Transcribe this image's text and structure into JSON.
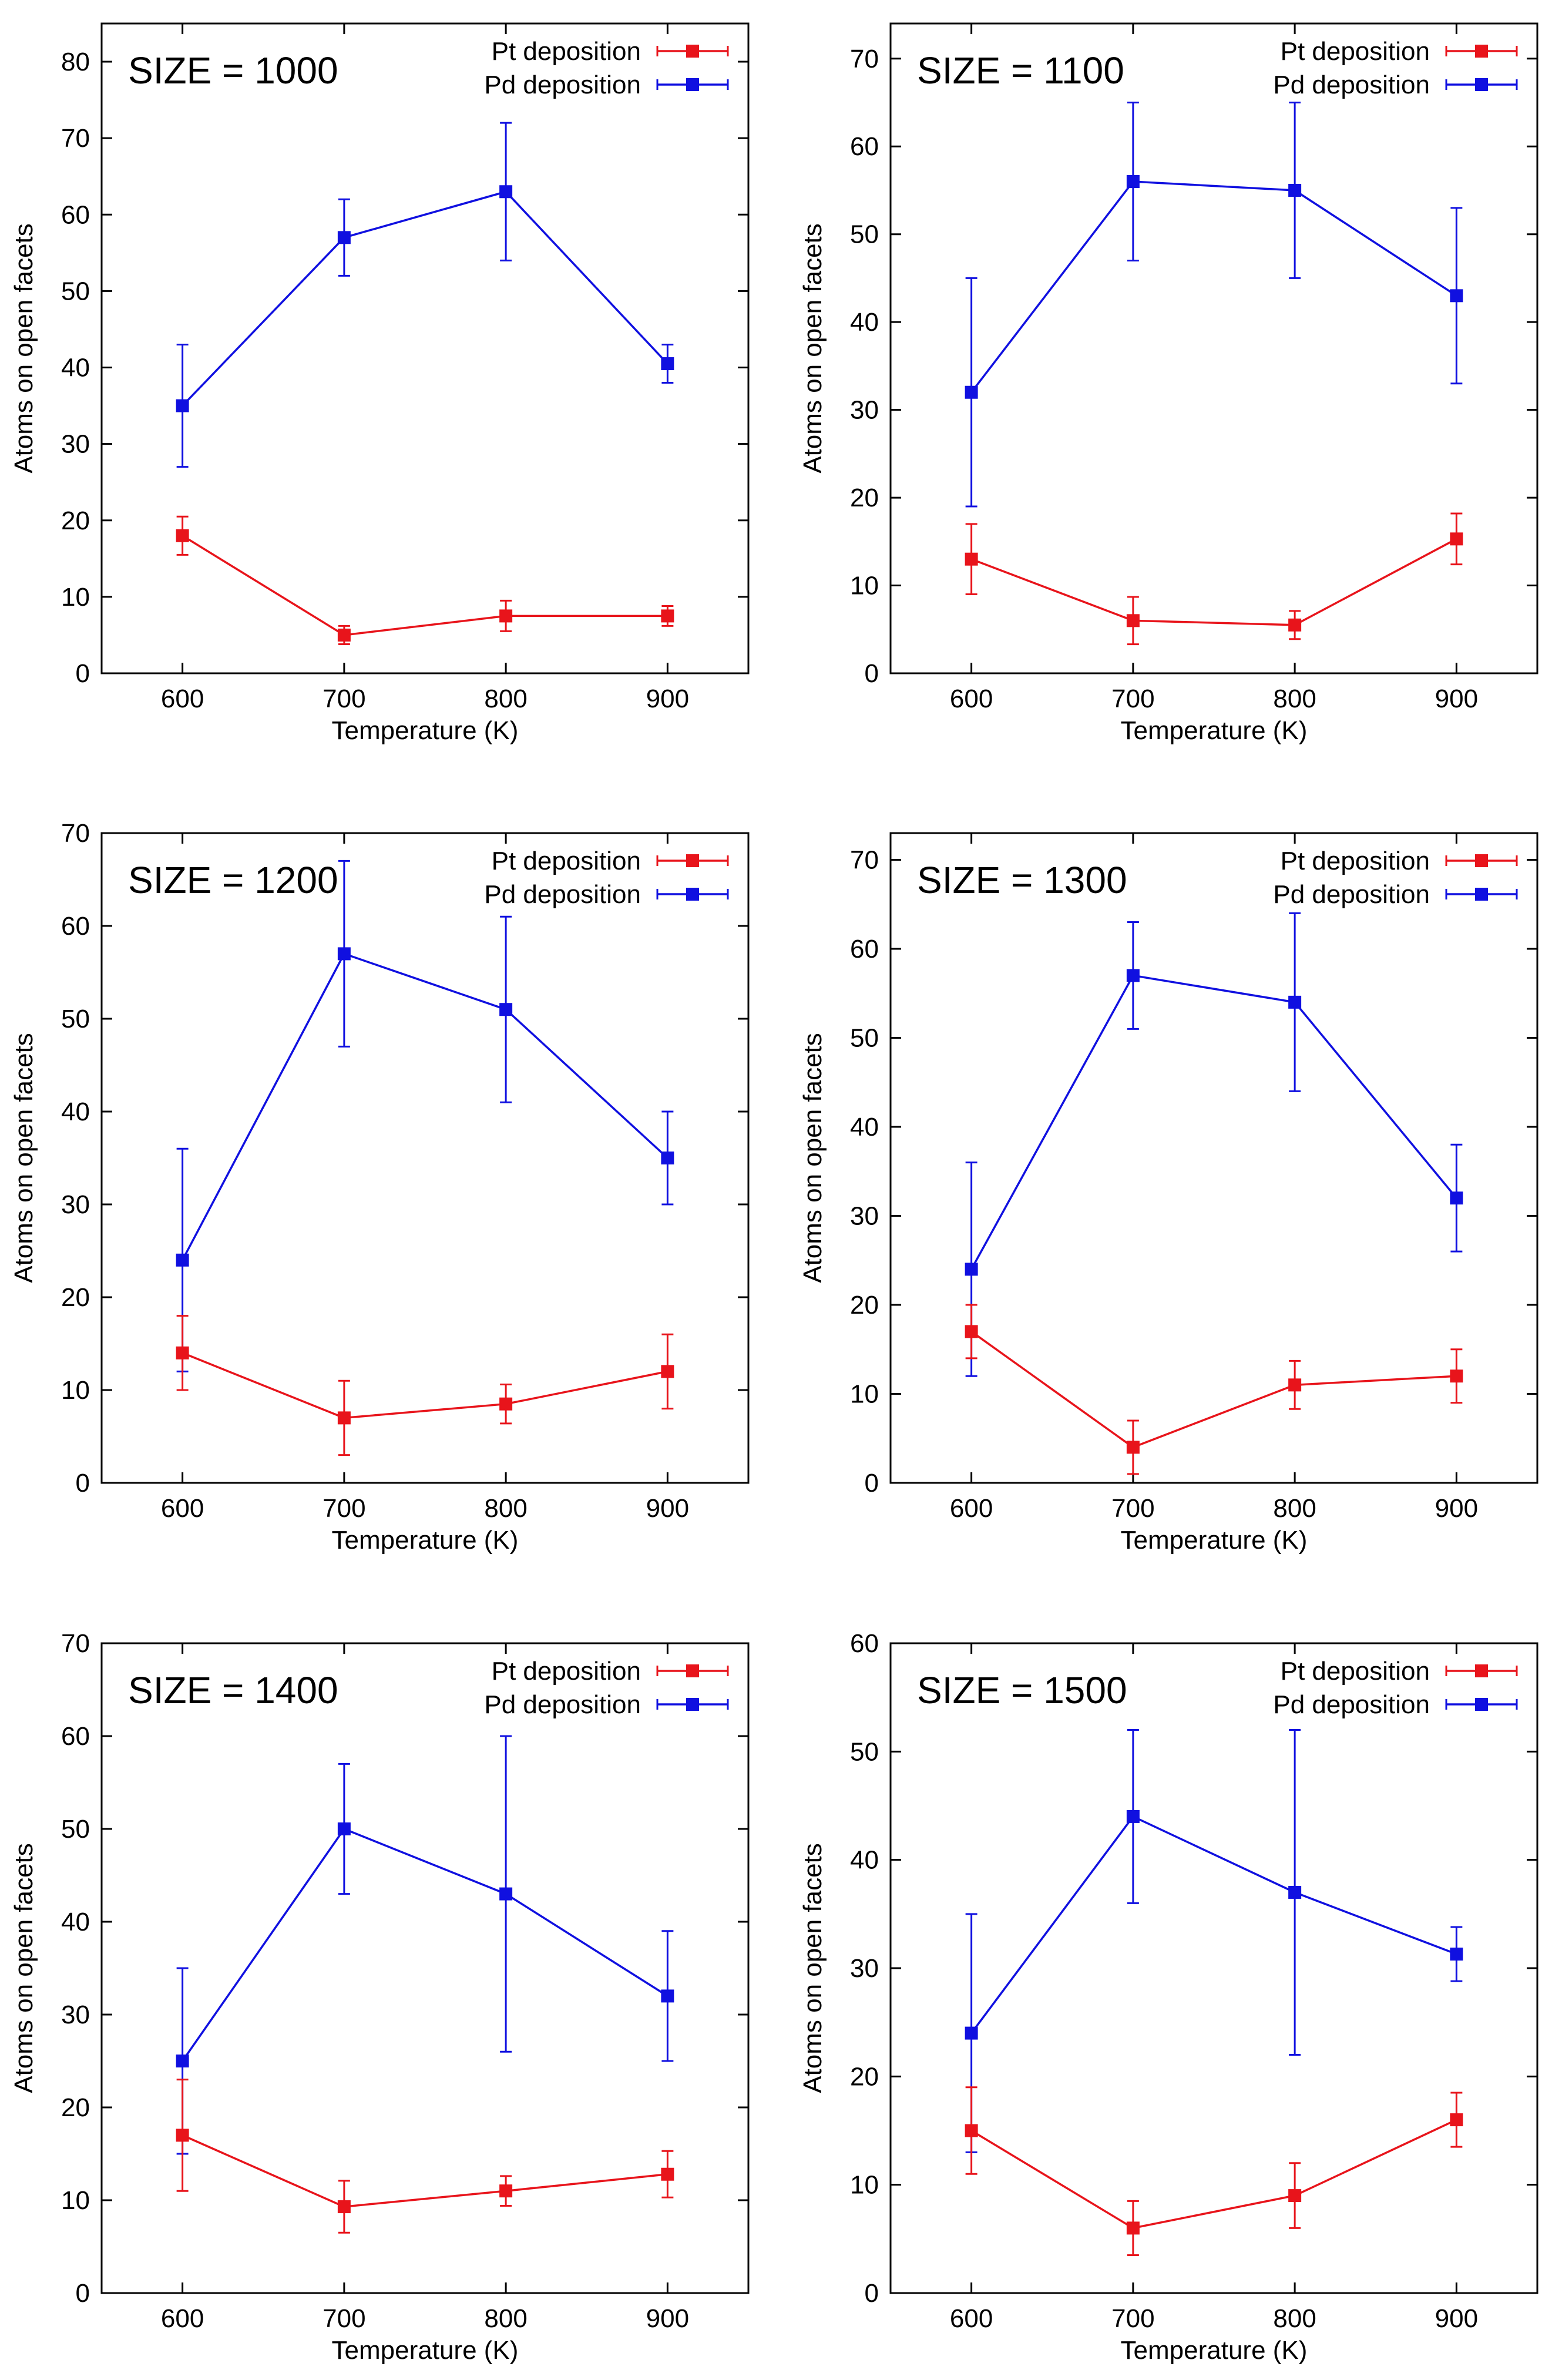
{
  "colors": {
    "pt": "#e8141b",
    "pd": "#1010e0",
    "axis": "#000000"
  },
  "chart_data": [
    {
      "type": "line",
      "title": "SIZE = 1000",
      "xlabel": "Temperature (K)",
      "ylabel": "Atoms on open facets",
      "x": [
        600,
        700,
        800,
        900
      ],
      "xlim": [
        550,
        950
      ],
      "ylim": [
        0,
        85
      ],
      "yticks": [
        0,
        10,
        20,
        30,
        40,
        50,
        60,
        70,
        80
      ],
      "legend_position": "top-right",
      "series": [
        {
          "name": "Pt deposition",
          "color": "#e8141b",
          "values": [
            18,
            5,
            7.5,
            7.5
          ],
          "err": [
            2.5,
            1.2,
            2,
            1.3
          ]
        },
        {
          "name": "Pd deposition",
          "color": "#1010e0",
          "values": [
            35,
            57,
            63,
            40.5
          ],
          "err": [
            8,
            5,
            9,
            2.5
          ]
        }
      ]
    },
    {
      "type": "line",
      "title": "SIZE = 1100",
      "xlabel": "Temperature (K)",
      "ylabel": "Atoms on open facets",
      "x": [
        600,
        700,
        800,
        900
      ],
      "xlim": [
        550,
        950
      ],
      "ylim": [
        0,
        74
      ],
      "yticks": [
        0,
        10,
        20,
        30,
        40,
        50,
        60,
        70
      ],
      "legend_position": "top-right",
      "series": [
        {
          "name": "Pt deposition",
          "color": "#e8141b",
          "values": [
            13,
            6,
            5.5,
            15.3
          ],
          "err": [
            4,
            2.7,
            1.6,
            2.9
          ]
        },
        {
          "name": "Pd deposition",
          "color": "#1010e0",
          "values": [
            32,
            56,
            55,
            43
          ],
          "err": [
            13,
            9,
            10,
            10
          ]
        }
      ]
    },
    {
      "type": "line",
      "title": "SIZE = 1200",
      "xlabel": "Temperature (K)",
      "ylabel": "Atoms on open facets",
      "x": [
        600,
        700,
        800,
        900
      ],
      "xlim": [
        550,
        950
      ],
      "ylim": [
        0,
        70
      ],
      "yticks": [
        0,
        10,
        20,
        30,
        40,
        50,
        60,
        70
      ],
      "legend_position": "top-right",
      "series": [
        {
          "name": "Pt deposition",
          "color": "#e8141b",
          "values": [
            14,
            7,
            8.5,
            12
          ],
          "err": [
            4,
            4,
            2.1,
            4
          ]
        },
        {
          "name": "Pd deposition",
          "color": "#1010e0",
          "values": [
            24,
            57,
            51,
            35
          ],
          "err": [
            12,
            10,
            10,
            5
          ]
        }
      ]
    },
    {
      "type": "line",
      "title": "SIZE = 1300",
      "xlabel": "Temperature (K)",
      "ylabel": "Atoms on open facets",
      "x": [
        600,
        700,
        800,
        900
      ],
      "xlim": [
        550,
        950
      ],
      "ylim": [
        0,
        73
      ],
      "yticks": [
        0,
        10,
        20,
        30,
        40,
        50,
        60,
        70
      ],
      "legend_position": "top-right",
      "series": [
        {
          "name": "Pt deposition",
          "color": "#e8141b",
          "values": [
            17,
            4,
            11,
            12
          ],
          "err": [
            3,
            3,
            2.7,
            3
          ]
        },
        {
          "name": "Pd deposition",
          "color": "#1010e0",
          "values": [
            24,
            57,
            54,
            32
          ],
          "err": [
            12,
            6,
            10,
            6
          ]
        }
      ]
    },
    {
      "type": "line",
      "title": "SIZE = 1400",
      "xlabel": "Temperature (K)",
      "ylabel": "Atoms on open facets",
      "x": [
        600,
        700,
        800,
        900
      ],
      "xlim": [
        550,
        950
      ],
      "ylim": [
        0,
        70
      ],
      "yticks": [
        0,
        10,
        20,
        30,
        40,
        50,
        60,
        70
      ],
      "legend_position": "top-right",
      "series": [
        {
          "name": "Pt deposition",
          "color": "#e8141b",
          "values": [
            17,
            9.3,
            11,
            12.8
          ],
          "err": [
            6,
            2.8,
            1.6,
            2.5
          ]
        },
        {
          "name": "Pd deposition",
          "color": "#1010e0",
          "values": [
            25,
            50,
            43,
            32
          ],
          "err": [
            10,
            7,
            17,
            7
          ]
        }
      ]
    },
    {
      "type": "line",
      "title": "SIZE = 1500",
      "xlabel": "Temperature (K)",
      "ylabel": "Atoms on open facets",
      "x": [
        600,
        700,
        800,
        900
      ],
      "xlim": [
        550,
        950
      ],
      "ylim": [
        0,
        60
      ],
      "yticks": [
        0,
        10,
        20,
        30,
        40,
        50,
        60
      ],
      "legend_position": "top-right",
      "series": [
        {
          "name": "Pt deposition",
          "color": "#e8141b",
          "values": [
            15,
            6,
            9,
            16
          ],
          "err": [
            4,
            2.5,
            3,
            2.5
          ]
        },
        {
          "name": "Pd deposition",
          "color": "#1010e0",
          "values": [
            24,
            44,
            37,
            31.3
          ],
          "err": [
            11,
            8,
            15,
            2.5
          ]
        }
      ]
    }
  ]
}
